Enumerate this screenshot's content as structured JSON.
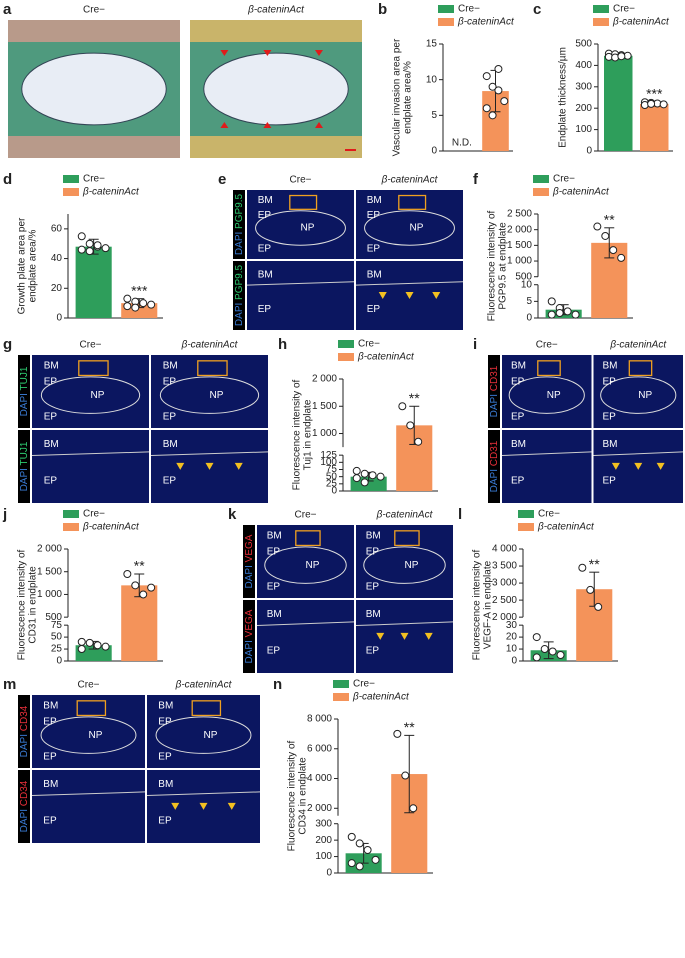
{
  "images": [
    {
      "panel_label": "a",
      "headers": [
        "Cre−",
        "β-cateninAct"
      ]
    },
    {
      "panel_label": "e",
      "headers": [
        "Cre−",
        "β-cateninAct"
      ],
      "stain": [
        "DAPI",
        "PGP9.5"
      ],
      "stain_color": "#2ecc71",
      "top_labels": [
        "BM",
        "EP",
        "NP",
        "EP"
      ],
      "bottom_labels": [
        "BM",
        "EP"
      ]
    },
    {
      "panel_label": "g",
      "headers": [
        "Cre−",
        "β-cateninAct"
      ],
      "stain": [
        "DAPI",
        "TUJ1"
      ],
      "stain_color": "#2ecc71",
      "top_labels": [
        "BM",
        "EP",
        "NP",
        "EP"
      ],
      "bottom_labels": [
        "BM",
        "EP"
      ]
    },
    {
      "panel_label": "i",
      "headers": [
        "Cre−",
        "β-cateninAct"
      ],
      "stain": [
        "DAPI",
        "CD31"
      ],
      "stain_color": "#e8303a",
      "top_labels": [
        "BM",
        "EP",
        "NP",
        "EP"
      ],
      "bottom_labels": [
        "BM",
        "EP"
      ]
    },
    {
      "panel_label": "k",
      "headers": [
        "Cre−",
        "β-cateninAct"
      ],
      "stain": [
        "DAPI",
        "VEGA"
      ],
      "stain_color": "#e8303a",
      "top_labels": [
        "BM",
        "EP",
        "NP",
        "EP"
      ],
      "bottom_labels": [
        "BM",
        "EP"
      ]
    },
    {
      "panel_label": "m",
      "headers": [
        "Cre−",
        "β-cateninAct"
      ],
      "stain": [
        "DAPI",
        "CD34"
      ],
      "stain_color": "#e8303a",
      "top_labels": [
        "BM",
        "EP",
        "NP",
        "EP"
      ],
      "bottom_labels": [
        "BM",
        "EP"
      ]
    }
  ],
  "chart_data": [
    {
      "type": "bar",
      "panel_label": "b",
      "ylabel": [
        "Vascular invasion area per",
        "endplate area/%"
      ],
      "ylim": [
        0,
        15
      ],
      "yticks": [
        0,
        5,
        10,
        15
      ],
      "nd_label": "N.D.",
      "series": [
        {
          "name": "Cre−",
          "color": "#2e9e5b",
          "values": [
            null
          ],
          "errors": [
            null
          ],
          "points": []
        },
        {
          "name": "β-cateninAct",
          "color": "#f4935a",
          "values": [
            8.4
          ],
          "errors": [
            2.9
          ],
          "points": [
            10.5,
            9,
            8.5,
            7,
            6,
            5,
            11.5
          ]
        }
      ]
    },
    {
      "type": "bar",
      "panel_label": "c",
      "ylabel": [
        "Endplate thickness/µm"
      ],
      "ylim": [
        0,
        500
      ],
      "yticks": [
        0,
        100,
        200,
        300,
        400,
        500
      ],
      "significance": "***",
      "series": [
        {
          "name": "Cre−",
          "color": "#2e9e5b",
          "values": [
            445
          ],
          "errors": [
            12
          ],
          "points": [
            455,
            452,
            448,
            445,
            440,
            437,
            443
          ]
        },
        {
          "name": "β-cateninAct",
          "color": "#f4935a",
          "values": [
            220
          ],
          "errors": [
            10
          ],
          "points": [
            228,
            225,
            222,
            218,
            215,
            220
          ]
        }
      ]
    },
    {
      "type": "bar",
      "panel_label": "d",
      "ylabel": [
        "Growth plate area per",
        "endplate area/%"
      ],
      "ylim": [
        0,
        70
      ],
      "yticks": [
        0,
        20,
        40,
        60
      ],
      "significance": "***",
      "series": [
        {
          "name": "Cre−",
          "color": "#2e9e5b",
          "values": [
            48
          ],
          "errors": [
            5
          ],
          "points": [
            55,
            50,
            48,
            47,
            46,
            45,
            49
          ]
        },
        {
          "name": "β-cateninAct",
          "color": "#f4935a",
          "values": [
            10
          ],
          "errors": [
            3
          ],
          "points": [
            13,
            11,
            10,
            9,
            8,
            7
          ]
        }
      ]
    },
    {
      "type": "broken-bar",
      "panel_label": "f",
      "ylabel": [
        "Fluorescence intensity of",
        "PGP9.5 at endplate"
      ],
      "significance": "**",
      "segments": [
        {
          "ylim": [
            0,
            10
          ],
          "yticks": [
            0,
            5,
            10
          ]
        },
        {
          "ylim": [
            500,
            2500
          ],
          "yticks": [
            500,
            {
              "value": 1000,
              "label": "1 000"
            },
            {
              "value": 1500,
              "label": "1 500"
            },
            {
              "value": 2000,
              "label": "2 000"
            },
            {
              "value": 2500,
              "label": "2 500"
            }
          ]
        }
      ],
      "series": [
        {
          "name": "Cre−",
          "color": "#2e9e5b",
          "values": [
            2.5
          ],
          "errors": [
            1.5
          ],
          "points": [
            5,
            3,
            2,
            1,
            1,
            1.5
          ]
        },
        {
          "name": "β-cateninAct",
          "color": "#f4935a",
          "values": [
            1580
          ],
          "errors": [
            480
          ],
          "points": [
            2100,
            1800,
            1350,
            1100
          ]
        }
      ]
    },
    {
      "type": "broken-bar",
      "panel_label": "h",
      "ylabel": [
        "Fluorescence intensity of",
        "Tuj1 in endplate"
      ],
      "significance": "**",
      "segments": [
        {
          "ylim": [
            0,
            125
          ],
          "yticks": [
            0,
            25,
            50,
            75,
            100,
            125
          ]
        },
        {
          "ylim": [
            750,
            2000
          ],
          "yticks": [
            {
              "value": 1000,
              "label": "1 000"
            },
            {
              "value": 1500,
              "label": "1 500"
            },
            {
              "value": 2000,
              "label": "2 000"
            }
          ]
        }
      ],
      "series": [
        {
          "name": "Cre−",
          "color": "#2e9e5b",
          "values": [
            50
          ],
          "errors": [
            15
          ],
          "points": [
            70,
            60,
            55,
            50,
            45,
            30
          ]
        },
        {
          "name": "β-cateninAct",
          "color": "#f4935a",
          "values": [
            1150
          ],
          "errors": [
            350
          ],
          "points": [
            1500,
            1150,
            850
          ]
        }
      ]
    },
    {
      "type": "broken-bar",
      "panel_label": "j",
      "ylabel": [
        "Fluorescence intensity of",
        "CD31 in endplate"
      ],
      "significance": "**",
      "segments": [
        {
          "ylim": [
            0,
            75
          ],
          "yticks": [
            0,
            25,
            50,
            75
          ]
        },
        {
          "ylim": [
            500,
            2000
          ],
          "yticks": [
            500,
            {
              "value": 1000,
              "label": "1 000"
            },
            {
              "value": 1500,
              "label": "1 500"
            },
            {
              "value": 2000,
              "label": "2 000"
            }
          ]
        }
      ],
      "series": [
        {
          "name": "Cre−",
          "color": "#2e9e5b",
          "values": [
            33
          ],
          "errors": [
            8
          ],
          "points": [
            40,
            38,
            33,
            30,
            25
          ]
        },
        {
          "name": "β-cateninAct",
          "color": "#f4935a",
          "values": [
            1200
          ],
          "errors": [
            250
          ],
          "points": [
            1450,
            1200,
            1000,
            1150
          ]
        }
      ]
    },
    {
      "type": "broken-bar",
      "panel_label": "l",
      "ylabel": [
        "Fluorescence intensity of",
        "VEGF-A in endplate"
      ],
      "significance": "**",
      "segments": [
        {
          "ylim": [
            0,
            30
          ],
          "yticks": [
            0,
            10,
            20,
            30
          ]
        },
        {
          "ylim": [
            2000,
            4000
          ],
          "yticks": [
            {
              "value": 2000,
              "label": "2 000"
            },
            {
              "value": 2500,
              "label": "2 500"
            },
            {
              "value": 3000,
              "label": "3 000"
            },
            {
              "value": 3500,
              "label": "3 500"
            },
            {
              "value": 4000,
              "label": "4 000"
            }
          ]
        }
      ],
      "series": [
        {
          "name": "Cre−",
          "color": "#2e9e5b",
          "values": [
            9
          ],
          "errors": [
            7
          ],
          "points": [
            20,
            10,
            8,
            5,
            3
          ]
        },
        {
          "name": "β-cateninAct",
          "color": "#f4935a",
          "values": [
            2820
          ],
          "errors": [
            500
          ],
          "points": [
            3450,
            2800,
            2300
          ]
        }
      ]
    },
    {
      "type": "broken-bar",
      "panel_label": "n",
      "ylabel": [
        "Fluorescence intensity of",
        "CD34 in endplate"
      ],
      "significance": "**",
      "segments": [
        {
          "ylim": [
            0,
            300
          ],
          "yticks": [
            0,
            100,
            200,
            300
          ]
        },
        {
          "ylim": [
            1500,
            8000
          ],
          "yticks": [
            {
              "value": 2000,
              "label": "2 000"
            },
            {
              "value": 4000,
              "label": "4 000"
            },
            {
              "value": 6000,
              "label": "6 000"
            },
            {
              "value": 8000,
              "label": "8 000"
            }
          ]
        }
      ],
      "series": [
        {
          "name": "Cre−",
          "color": "#2e9e5b",
          "values": [
            120
          ],
          "errors": [
            60
          ],
          "points": [
            220,
            180,
            140,
            80,
            60,
            40
          ]
        },
        {
          "name": "β-cateninAct",
          "color": "#f4935a",
          "values": [
            4300
          ],
          "errors": [
            2600
          ],
          "points": [
            7000,
            4200,
            2000
          ]
        }
      ]
    }
  ]
}
